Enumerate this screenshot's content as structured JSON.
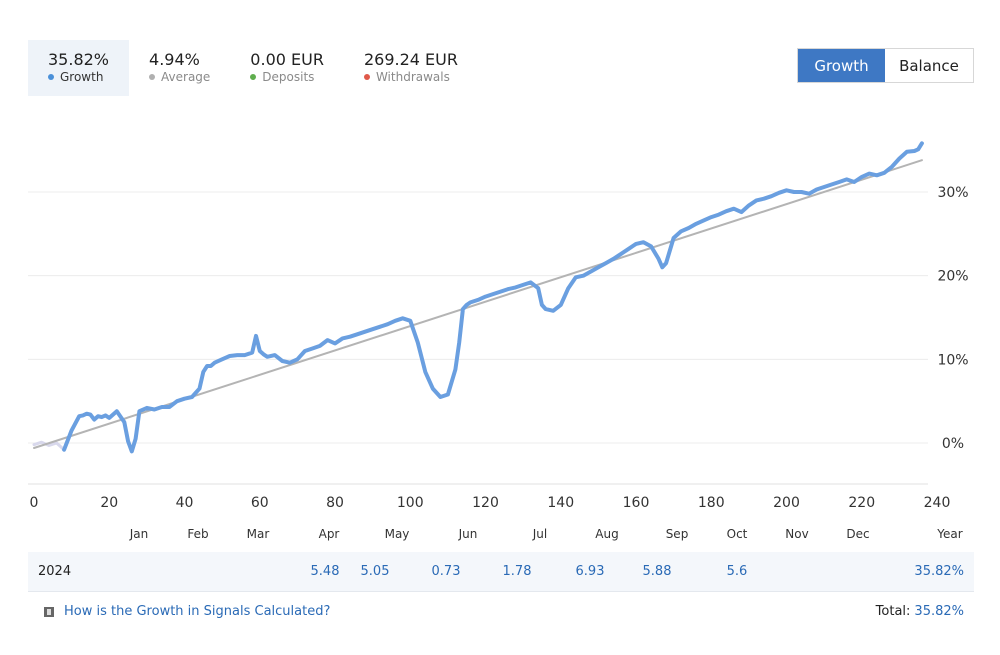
{
  "stats": [
    {
      "value": "35.82%",
      "label": "Growth",
      "color": "#4a90d9",
      "active": true
    },
    {
      "value": "4.94%",
      "label": "Average",
      "color": "#b0b0b0",
      "active": false
    },
    {
      "value": "0.00 EUR",
      "label": "Deposits",
      "color": "#5fae4e",
      "active": false
    },
    {
      "value": "269.24 EUR",
      "label": "Withdrawals",
      "color": "#e0594a",
      "active": false
    }
  ],
  "toggle": {
    "growth_label": "Growth",
    "balance_label": "Balance"
  },
  "chart_data": {
    "type": "line",
    "x_ticks": [
      "0",
      "20",
      "40",
      "60",
      "80",
      "100",
      "120",
      "140",
      "160",
      "180",
      "200",
      "220",
      "240"
    ],
    "xlim": [
      0,
      240
    ],
    "y_ticks": [
      "0%",
      "10%",
      "20%",
      "30%"
    ],
    "ylim": [
      -5,
      37
    ],
    "y_tick_values": [
      0,
      10,
      20,
      30
    ],
    "months": [
      "Jan",
      "Feb",
      "Mar",
      "Apr",
      "May",
      "Jun",
      "Jul",
      "Aug",
      "Sep",
      "Oct",
      "Nov",
      "Dec",
      "Year"
    ],
    "series": [
      {
        "name": "Growth",
        "color": "#6a9fe0",
        "x": [
          8,
          10,
          12,
          13,
          14,
          15,
          16,
          17,
          18,
          19,
          20,
          22,
          24,
          25,
          26,
          27,
          28,
          30,
          32,
          34,
          36,
          38,
          40,
          42,
          44,
          45,
          46,
          47,
          48,
          50,
          52,
          54,
          56,
          58,
          59,
          60,
          61,
          62,
          64,
          66,
          68,
          70,
          72,
          74,
          76,
          78,
          80,
          82,
          84,
          86,
          88,
          90,
          92,
          94,
          96,
          98,
          100,
          102,
          104,
          106,
          108,
          110,
          112,
          113,
          114,
          115,
          116,
          118,
          120,
          122,
          124,
          126,
          128,
          130,
          132,
          134,
          135,
          136,
          138,
          140,
          142,
          144,
          146,
          148,
          150,
          152,
          154,
          156,
          158,
          160,
          162,
          164,
          166,
          167,
          168,
          170,
          172,
          174,
          176,
          178,
          180,
          182,
          184,
          186,
          188,
          190,
          192,
          194,
          196,
          198,
          200,
          202,
          204,
          206,
          208,
          210,
          212,
          214,
          216,
          218,
          220,
          222,
          224,
          226,
          228,
          230,
          232,
          234,
          235,
          236
        ],
        "y": [
          -0.8,
          1.5,
          3.2,
          3.3,
          3.5,
          3.4,
          2.8,
          3.2,
          3.1,
          3.3,
          3.0,
          3.8,
          2.5,
          0.2,
          -1.0,
          0.5,
          3.8,
          4.2,
          4.0,
          4.3,
          4.3,
          5.0,
          5.3,
          5.5,
          6.5,
          8.5,
          9.2,
          9.2,
          9.6,
          10.0,
          10.4,
          10.5,
          10.5,
          10.8,
          12.8,
          11.0,
          10.6,
          10.3,
          10.5,
          9.8,
          9.6,
          10.0,
          11.0,
          11.3,
          11.6,
          12.3,
          11.9,
          12.5,
          12.7,
          13.0,
          13.3,
          13.6,
          13.9,
          14.2,
          14.6,
          14.9,
          14.6,
          12.0,
          8.5,
          6.5,
          5.5,
          5.8,
          8.8,
          12.0,
          16.0,
          16.5,
          16.8,
          17.1,
          17.5,
          17.8,
          18.1,
          18.4,
          18.6,
          18.9,
          19.2,
          18.5,
          16.5,
          16.0,
          15.8,
          16.5,
          18.5,
          19.8,
          20.0,
          20.5,
          21.0,
          21.5,
          22.0,
          22.6,
          23.2,
          23.8,
          24.0,
          23.5,
          22.0,
          21.0,
          21.5,
          24.5,
          25.3,
          25.7,
          26.2,
          26.6,
          27.0,
          27.3,
          27.7,
          28.0,
          27.6,
          28.4,
          29.0,
          29.2,
          29.5,
          29.9,
          30.2,
          30.0,
          30.0,
          29.8,
          30.3,
          30.6,
          30.9,
          31.2,
          31.5,
          31.2,
          31.8,
          32.2,
          32.0,
          32.3,
          33.0,
          34.0,
          34.8,
          34.9,
          35.1,
          35.82
        ]
      },
      {
        "name": "Average",
        "color": "#b4b4b4",
        "x": [
          0,
          236
        ],
        "y": [
          -0.6,
          33.8
        ]
      },
      {
        "name": "Pre-start",
        "color": "#d8d8ec",
        "x": [
          0,
          2,
          4,
          6,
          8
        ],
        "y": [
          -0.2,
          0.1,
          -0.3,
          0.0,
          -0.8
        ]
      }
    ],
    "year_row": {
      "year": "2024",
      "values": [
        {
          "month": "Apr",
          "value": "5.48"
        },
        {
          "month": "May",
          "value": "5.05"
        },
        {
          "month": "Jun",
          "value": "0.73"
        },
        {
          "month": "Jul",
          "value": "1.78"
        },
        {
          "month": "Aug",
          "value": "6.93"
        },
        {
          "month": "Sep",
          "value": "5.88"
        },
        {
          "month": "Oct",
          "value": "5.6"
        }
      ],
      "total": "35.82%"
    }
  },
  "footer": {
    "help_text": "How is the Growth in Signals Calculated?",
    "total_label": "Total:",
    "total_value": "35.82%"
  }
}
